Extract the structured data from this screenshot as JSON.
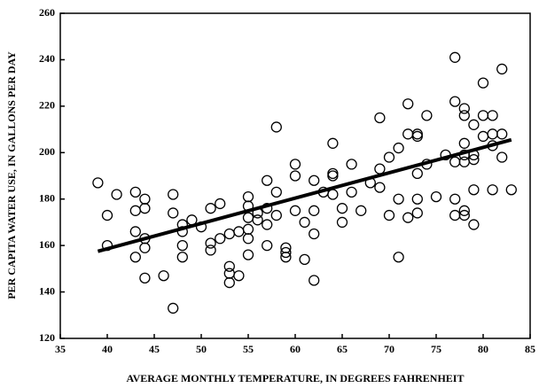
{
  "chart_data": {
    "type": "scatter",
    "x_label": "AVERAGE MONTHLY TEMPERATURE, IN DEGREES FAHRENHEIT",
    "y_label": "PER CAPITA WATER USE, IN GALLONS PER DAY",
    "xlim": [
      35,
      85
    ],
    "xticks": [
      35,
      40,
      45,
      50,
      55,
      60,
      65,
      70,
      75,
      80,
      85
    ],
    "ylim": [
      120,
      260
    ],
    "yticks": [
      120,
      140,
      160,
      180,
      200,
      220,
      240,
      260
    ],
    "marker_color": "#000000",
    "line_color": "#000000",
    "points": {
      "x": [
        39,
        40,
        40,
        41,
        43,
        43,
        43,
        43,
        44,
        44,
        44,
        44,
        44,
        46,
        47,
        47,
        47,
        48,
        48,
        48,
        48,
        49,
        50,
        51,
        51,
        51,
        52,
        52,
        53,
        53,
        53,
        53,
        54,
        54,
        55,
        55,
        55,
        55,
        55,
        55,
        56,
        56,
        57,
        57,
        57,
        57,
        58,
        58,
        58,
        59,
        59,
        59,
        60,
        60,
        60,
        61,
        61,
        62,
        62,
        62,
        62,
        63,
        64,
        64,
        64,
        64,
        65,
        65,
        66,
        66,
        67,
        68,
        69,
        69,
        69,
        70,
        70,
        71,
        71,
        71,
        72,
        72,
        72,
        73,
        73,
        73,
        73,
        73,
        74,
        74,
        75,
        76,
        77,
        77,
        77,
        77,
        77,
        78,
        78,
        78,
        78,
        78,
        78,
        78,
        79,
        79,
        79,
        79,
        79,
        80,
        80,
        80,
        81,
        81,
        81,
        81,
        82,
        82,
        82,
        83
      ],
      "y": [
        187,
        173,
        160,
        182,
        183,
        175,
        166,
        155,
        180,
        176,
        163,
        159,
        146,
        147,
        182,
        174,
        133,
        169,
        166,
        160,
        155,
        171,
        168,
        176,
        161,
        158,
        178,
        163,
        165,
        151,
        148,
        144,
        166,
        147,
        181,
        177,
        172,
        167,
        163,
        156,
        174,
        171,
        188,
        176,
        169,
        160,
        211,
        183,
        173,
        159,
        157,
        155,
        195,
        190,
        175,
        170,
        154,
        188,
        175,
        165,
        145,
        183,
        204,
        191,
        190,
        182,
        176,
        170,
        195,
        183,
        175,
        187,
        215,
        193,
        185,
        198,
        173,
        202,
        180,
        155,
        221,
        208,
        172,
        208,
        207,
        191,
        180,
        174,
        216,
        195,
        181,
        199,
        241,
        222,
        196,
        180,
        173,
        219,
        216,
        204,
        199,
        196,
        175,
        173,
        212,
        199,
        197,
        184,
        169,
        230,
        216,
        207,
        216,
        208,
        203,
        184,
        236,
        208,
        198,
        184
      ]
    },
    "trend_line": {
      "x": [
        39,
        83
      ],
      "y": [
        157.5,
        205.5
      ]
    }
  }
}
